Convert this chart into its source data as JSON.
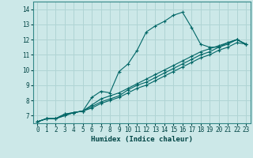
{
  "xlabel": "Humidex (Indice chaleur)",
  "ylabel": "",
  "background_color": "#cce8e8",
  "grid_color": "#b0d4d4",
  "line_color": "#006666",
  "xlim": [
    -0.5,
    23.5
  ],
  "ylim": [
    6.5,
    14.5
  ],
  "xticks": [
    0,
    1,
    2,
    3,
    4,
    5,
    6,
    7,
    8,
    9,
    10,
    11,
    12,
    13,
    14,
    15,
    16,
    17,
    18,
    19,
    20,
    21,
    22,
    23
  ],
  "yticks": [
    7,
    8,
    9,
    10,
    11,
    12,
    13,
    14
  ],
  "series": [
    {
      "x": [
        0,
        1,
        2,
        3,
        4,
        5,
        6,
        7,
        8,
        9,
        10,
        11,
        12,
        13,
        14,
        15,
        16,
        17,
        18,
        19,
        20,
        21,
        22,
        23
      ],
      "y": [
        6.6,
        6.8,
        6.8,
        7.1,
        7.2,
        7.3,
        8.2,
        8.6,
        8.5,
        9.9,
        10.4,
        11.3,
        12.5,
        12.9,
        13.2,
        13.6,
        13.8,
        12.8,
        11.7,
        11.5,
        11.5,
        11.8,
        12.0,
        11.7
      ]
    },
    {
      "x": [
        0,
        1,
        2,
        3,
        4,
        5,
        6,
        7,
        8,
        9,
        10,
        11,
        12,
        13,
        14,
        15,
        16,
        17,
        18,
        19,
        20,
        21,
        22,
        23
      ],
      "y": [
        6.6,
        6.8,
        6.8,
        7.0,
        7.2,
        7.3,
        7.5,
        7.8,
        8.0,
        8.2,
        8.5,
        8.8,
        9.0,
        9.3,
        9.6,
        9.9,
        10.2,
        10.5,
        10.8,
        11.0,
        11.3,
        11.5,
        11.8,
        11.7
      ]
    },
    {
      "x": [
        0,
        1,
        2,
        3,
        4,
        5,
        6,
        7,
        8,
        9,
        10,
        11,
        12,
        13,
        14,
        15,
        16,
        17,
        18,
        19,
        20,
        21,
        22,
        23
      ],
      "y": [
        6.6,
        6.8,
        6.8,
        7.0,
        7.2,
        7.3,
        7.6,
        7.9,
        8.1,
        8.3,
        8.7,
        9.0,
        9.2,
        9.5,
        9.8,
        10.1,
        10.4,
        10.7,
        11.0,
        11.2,
        11.5,
        11.7,
        12.0,
        11.7
      ]
    },
    {
      "x": [
        0,
        1,
        2,
        3,
        4,
        5,
        6,
        7,
        8,
        9,
        10,
        11,
        12,
        13,
        14,
        15,
        16,
        17,
        18,
        19,
        20,
        21,
        22,
        23
      ],
      "y": [
        6.6,
        6.8,
        6.8,
        7.1,
        7.2,
        7.3,
        7.7,
        8.1,
        8.3,
        8.5,
        8.8,
        9.1,
        9.4,
        9.7,
        10.0,
        10.3,
        10.6,
        10.9,
        11.2,
        11.4,
        11.6,
        11.8,
        12.0,
        11.7
      ]
    }
  ]
}
